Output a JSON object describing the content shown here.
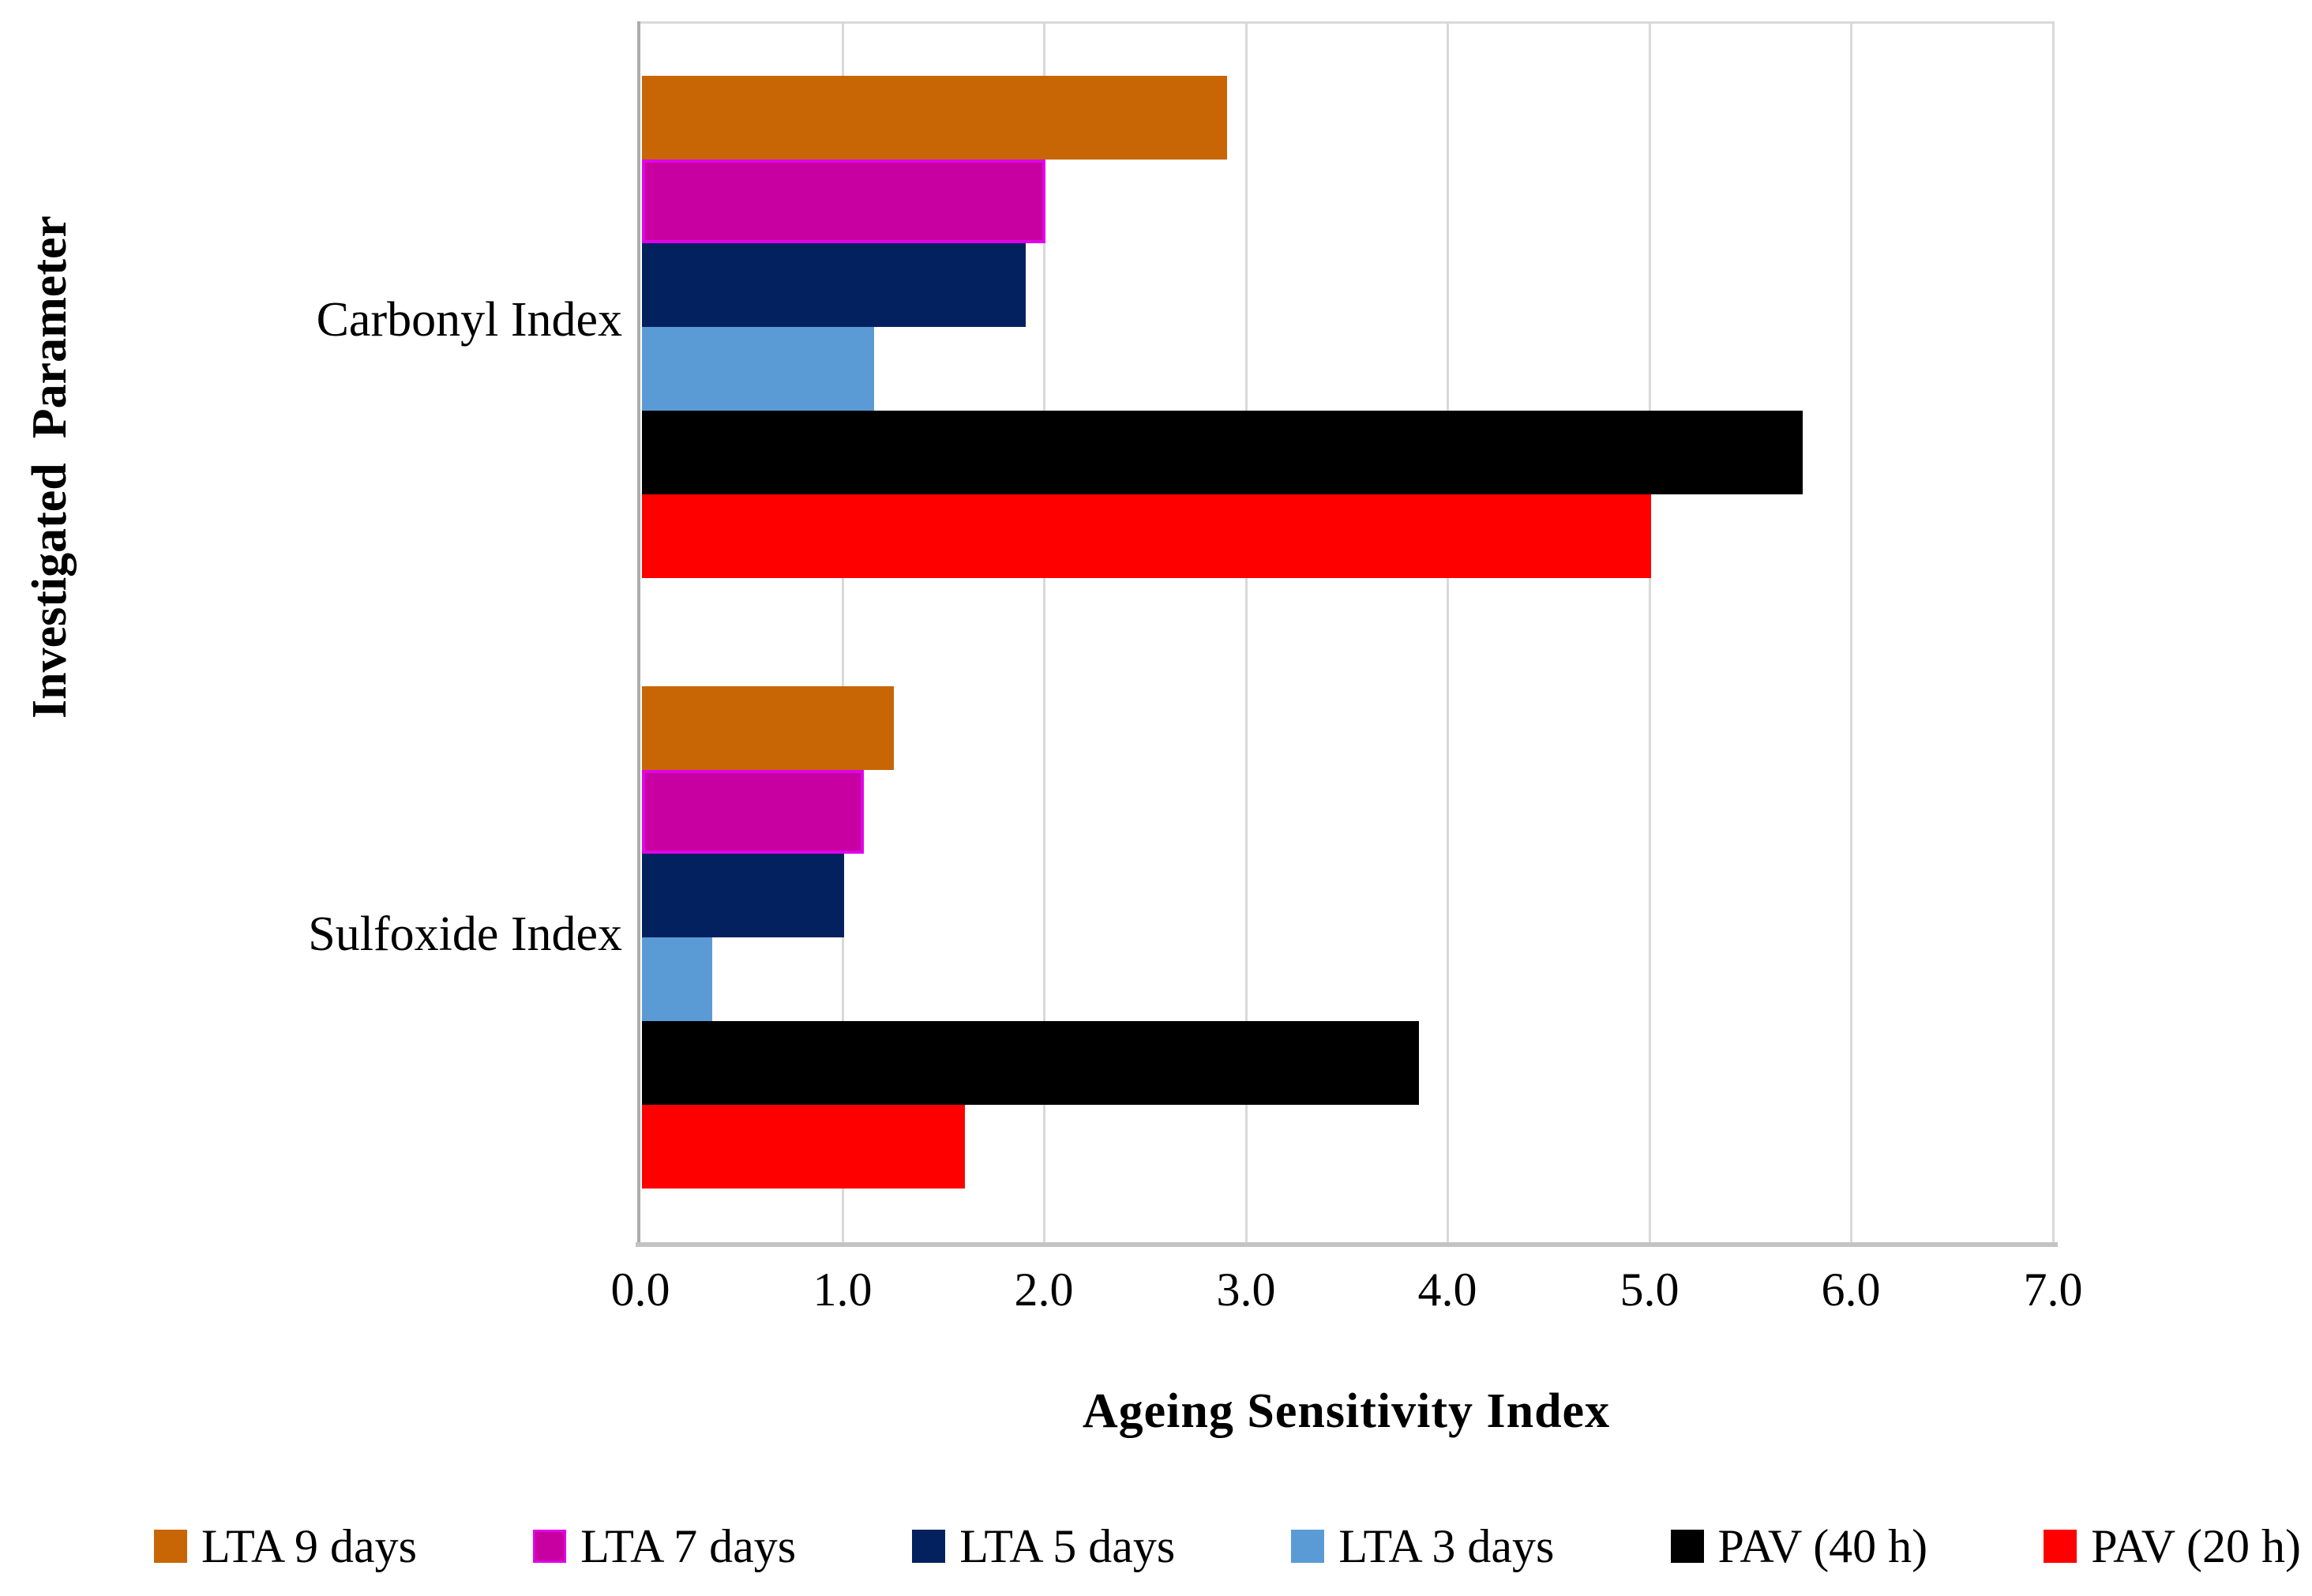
{
  "chart_data": {
    "type": "bar",
    "orientation": "horizontal",
    "categories": [
      "Carbonyl Index",
      "Sulfoxide Index"
    ],
    "series": [
      {
        "name": "LTA 9 days",
        "color": "#C86505",
        "values": [
          2.9,
          1.25
        ]
      },
      {
        "name": "LTA 7 days",
        "color": "#C800A1",
        "border_color": "#E004E8",
        "values": [
          2.0,
          1.1
        ]
      },
      {
        "name": "LTA 5 days",
        "color": "#03215F",
        "values": [
          1.9,
          1.0
        ]
      },
      {
        "name": "LTA 3 days",
        "color": "#5B9BD5",
        "values": [
          1.15,
          0.35
        ]
      },
      {
        "name": "PAV (40 h)",
        "color": "#000000",
        "values": [
          5.75,
          3.85
        ]
      },
      {
        "name": "PAV (20 h)",
        "color": "#FF0000",
        "values": [
          5.0,
          1.6
        ]
      }
    ],
    "xlabel": "Ageing Sensitivity Index",
    "ylabel": "Investigated  Parameter",
    "xlim": [
      0,
      7
    ],
    "xticks": [
      "0.0",
      "1.0",
      "2.0",
      "3.0",
      "4.0",
      "5.0",
      "6.0",
      "7.0"
    ],
    "grid": true,
    "legend_position": "bottom"
  },
  "colors": {
    "background": "#FFFFFF",
    "gridline": "#D9D9D9",
    "axis_left": "#ACACAC",
    "axis_bottom": "#C3C3C3",
    "text": "#000000"
  }
}
